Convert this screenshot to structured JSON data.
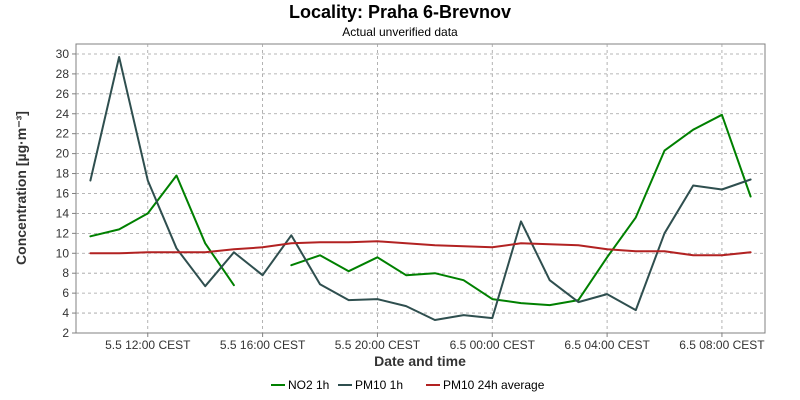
{
  "chart_data": {
    "type": "line",
    "title": "Locality: Praha 6-Brevnov",
    "subtitle": "Actual unverified data",
    "xlabel": "Date and time",
    "ylabel": "Concentration [µg·m⁻³]",
    "ylim": [
      2,
      31
    ],
    "yticks": [
      2,
      4,
      6,
      8,
      10,
      12,
      14,
      16,
      18,
      20,
      22,
      24,
      26,
      28,
      30
    ],
    "xlim": [
      -2.5,
      21.5
    ],
    "xticks": [
      {
        "value": 0,
        "label": "5.5 12:00 CEST"
      },
      {
        "value": 4,
        "label": "5.5 16:00 CEST"
      },
      {
        "value": 8,
        "label": "5.5 20:00 CEST"
      },
      {
        "value": 12,
        "label": "6.5 00:00 CEST"
      },
      {
        "value": 16,
        "label": "6.5 04:00 CEST"
      },
      {
        "value": 20,
        "label": "6.5 08:00 CEST"
      }
    ],
    "grid": true,
    "legend_position": "bottom",
    "series": [
      {
        "name": "NO2 1h",
        "color": "#008000",
        "x": [
          -2,
          -1,
          0,
          1,
          2,
          3,
          4,
          5,
          6,
          7,
          8,
          9,
          10,
          11,
          12,
          13,
          14,
          15,
          16,
          17,
          18,
          19,
          20,
          21
        ],
        "values": [
          11.7,
          12.4,
          14.0,
          17.8,
          11.0,
          6.8,
          null,
          8.8,
          9.8,
          8.2,
          9.6,
          7.8,
          8.0,
          7.3,
          5.4,
          5.0,
          4.8,
          5.3,
          9.6,
          13.6,
          20.3,
          22.4,
          23.9,
          15.7
        ]
      },
      {
        "name": "PM10 1h",
        "color": "#2f4f4f",
        "x": [
          -2,
          -1,
          0,
          1,
          2,
          3,
          4,
          5,
          6,
          7,
          8,
          9,
          10,
          11,
          12,
          13,
          14,
          15,
          16,
          17,
          18,
          19,
          20,
          21
        ],
        "values": [
          17.3,
          29.7,
          17.3,
          10.5,
          6.7,
          10.1,
          7.8,
          11.8,
          6.9,
          5.3,
          5.4,
          4.7,
          3.3,
          3.8,
          3.5,
          13.2,
          7.3,
          5.1,
          5.9,
          4.3,
          12.0,
          16.8,
          16.4,
          17.4
        ]
      },
      {
        "name": "PM10 24h average",
        "color": "#b22222",
        "x": [
          -2,
          -1,
          0,
          1,
          2,
          3,
          4,
          5,
          6,
          7,
          8,
          9,
          10,
          11,
          12,
          13,
          14,
          15,
          16,
          17,
          18,
          19,
          20,
          21
        ],
        "values": [
          10.0,
          10.0,
          10.1,
          10.1,
          10.1,
          10.4,
          10.6,
          11.0,
          11.1,
          11.1,
          11.2,
          11.0,
          10.8,
          10.7,
          10.6,
          11.0,
          10.9,
          10.8,
          10.4,
          10.2,
          10.2,
          9.8,
          9.8,
          10.1
        ]
      }
    ]
  }
}
